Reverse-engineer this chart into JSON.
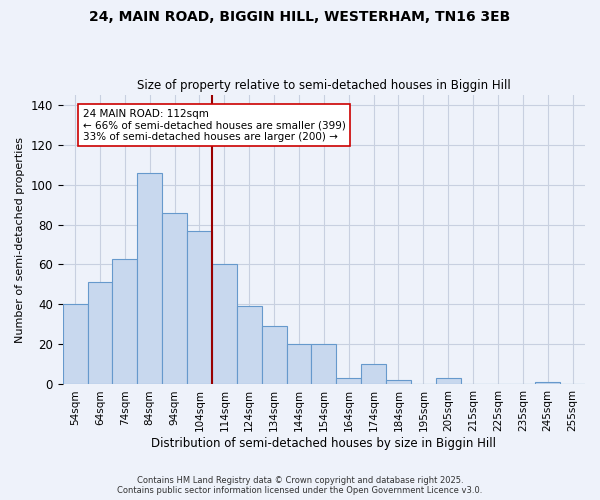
{
  "title1": "24, MAIN ROAD, BIGGIN HILL, WESTERHAM, TN16 3EB",
  "title2": "Size of property relative to semi-detached houses in Biggin Hill",
  "xlabel": "Distribution of semi-detached houses by size in Biggin Hill",
  "ylabel": "Number of semi-detached properties",
  "bar_labels": [
    "54sqm",
    "64sqm",
    "74sqm",
    "84sqm",
    "94sqm",
    "104sqm",
    "114sqm",
    "124sqm",
    "134sqm",
    "144sqm",
    "154sqm",
    "164sqm",
    "174sqm",
    "184sqm",
    "195sqm",
    "205sqm",
    "215sqm",
    "225sqm",
    "235sqm",
    "245sqm",
    "255sqm"
  ],
  "bar_values": [
    40,
    51,
    63,
    106,
    86,
    77,
    60,
    39,
    29,
    20,
    20,
    3,
    10,
    2,
    0,
    3,
    0,
    0,
    0,
    1,
    0
  ],
  "bar_color": "#c8d8ee",
  "bar_edge_color": "#6699cc",
  "vline_color": "#990000",
  "annotation_text": "24 MAIN ROAD: 112sqm\n← 66% of semi-detached houses are smaller (399)\n33% of semi-detached houses are larger (200) →",
  "annotation_box_edge": "#cc0000",
  "background_color": "#eef2fa",
  "ylim": [
    0,
    145
  ],
  "grid_color": "#c8d0e0",
  "footnote1": "Contains HM Land Registry data © Crown copyright and database right 2025.",
  "footnote2": "Contains public sector information licensed under the Open Government Licence v3.0."
}
